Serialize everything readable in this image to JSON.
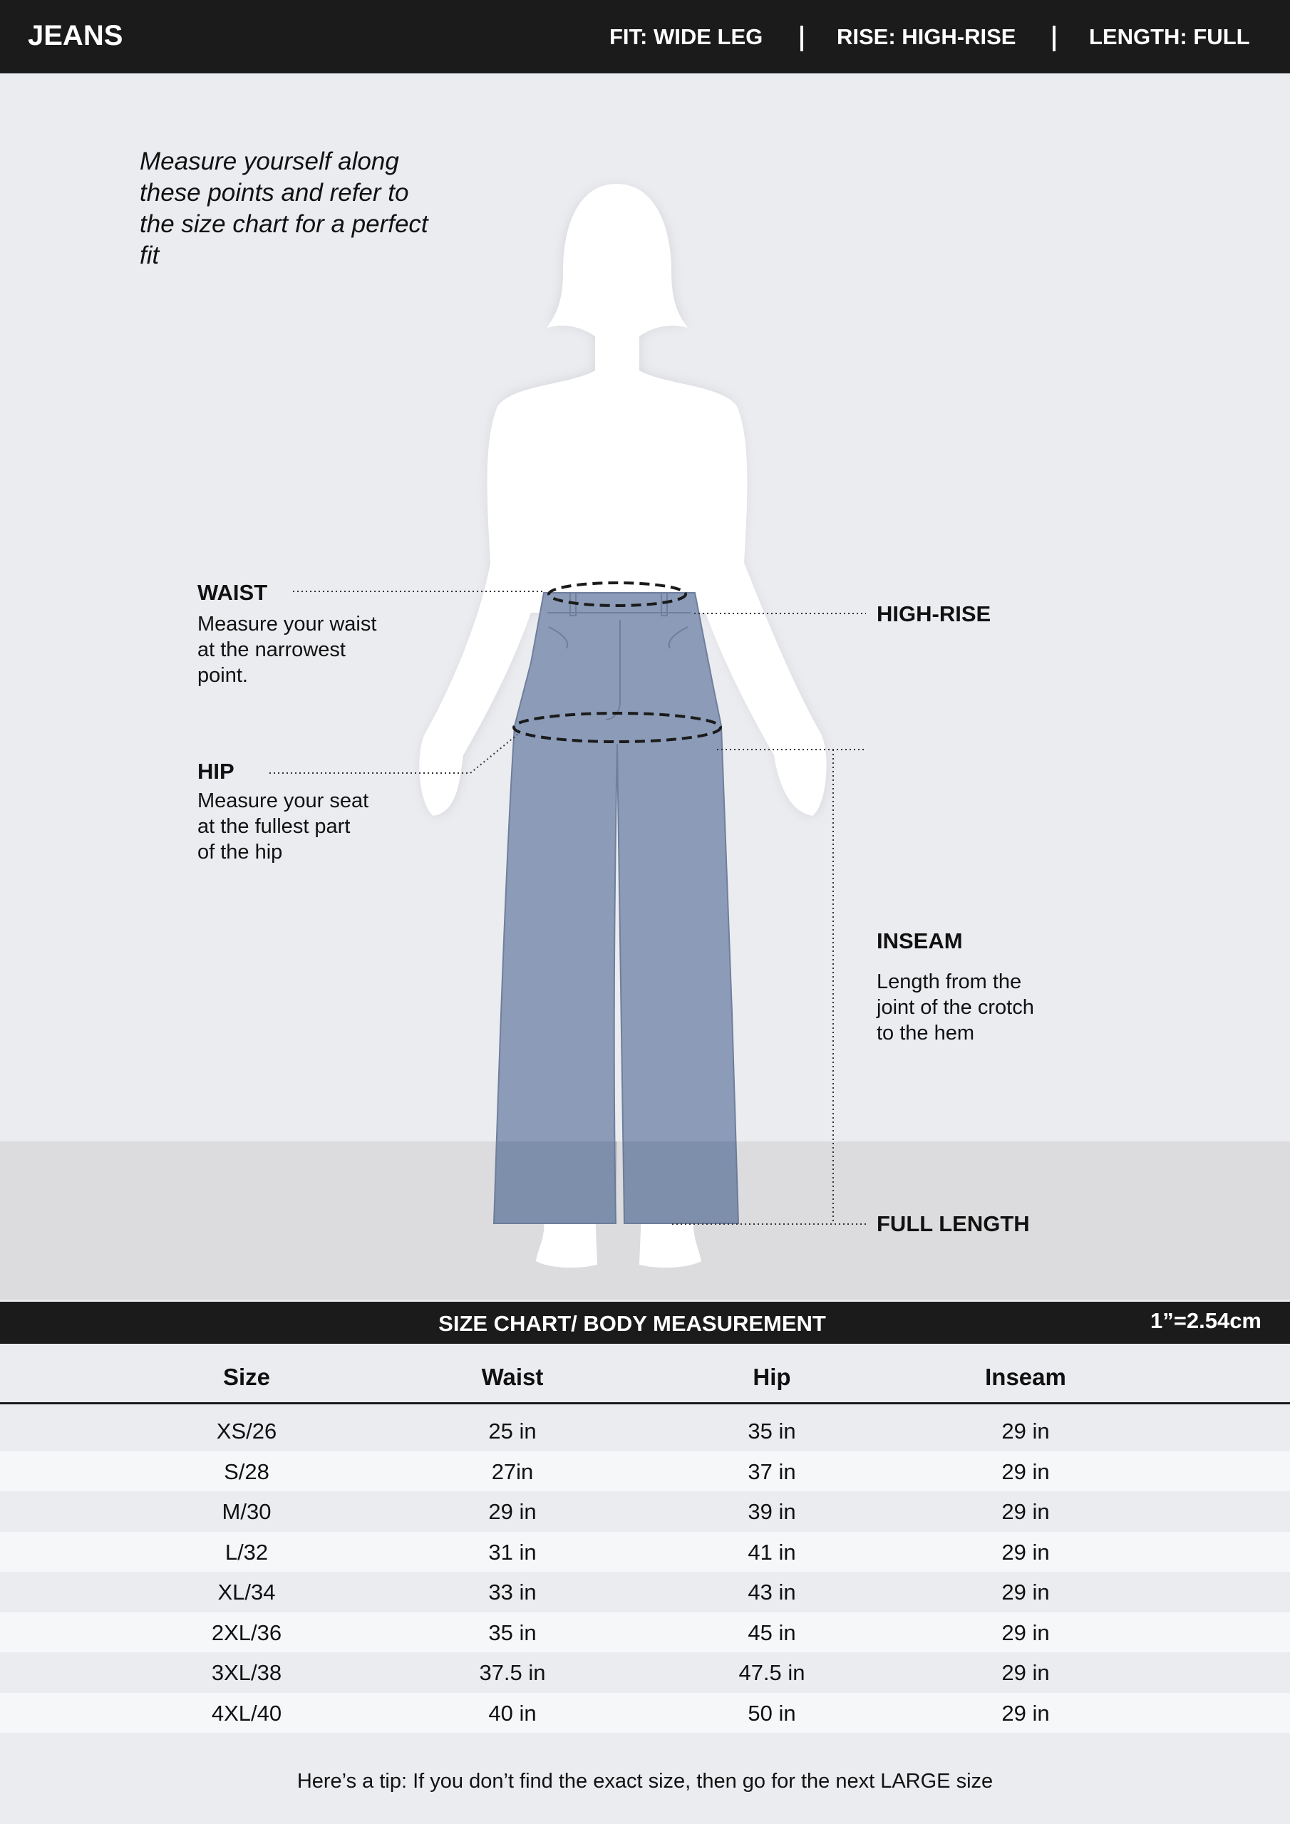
{
  "header": {
    "title": "JEANS",
    "fit": "FIT: WIDE LEG",
    "rise": "RISE: HIGH-RISE",
    "length": "LENGTH: FULL"
  },
  "diagram": {
    "intro": "Measure yourself along these points and refer to the size chart for a perfect fit",
    "waist": {
      "label": "WAIST",
      "desc": [
        "Measure your waist",
        "at the narrowest",
        "point."
      ]
    },
    "hip": {
      "label": "HIP",
      "desc": [
        "Measure your seat",
        "at the fullest part",
        "of the hip"
      ]
    },
    "high_rise": {
      "label": "HIGH-RISE"
    },
    "inseam": {
      "label": "INSEAM",
      "desc": [
        "Length from the",
        "joint of the crotch",
        "to the hem"
      ]
    },
    "full_length": {
      "label": "FULL LENGTH"
    },
    "colors": {
      "pants": "#8b9bb8",
      "background": "#ebecf0",
      "floor": "#dcdcde"
    }
  },
  "table": {
    "title": "SIZE CHART/ BODY MEASUREMENT",
    "conversion": "1”=2.54cm",
    "columns": [
      "Size",
      "Waist",
      "Hip",
      "Inseam"
    ],
    "rows": [
      [
        "XS/26",
        "25 in",
        "35 in",
        "29 in"
      ],
      [
        "S/28",
        "27in",
        "37 in",
        "29 in"
      ],
      [
        "M/30",
        "29 in",
        "39 in",
        "29 in"
      ],
      [
        "L/32",
        "31 in",
        "41 in",
        "29 in"
      ],
      [
        "XL/34",
        "33 in",
        "43 in",
        "29 in"
      ],
      [
        "2XL/36",
        "35 in",
        "45 in",
        "29 in"
      ],
      [
        "3XL/38",
        "37.5 in",
        "47.5 in",
        "29 in"
      ],
      [
        "4XL/40",
        "40 in",
        "50 in",
        "29 in"
      ]
    ]
  },
  "tip": "Here’s a tip: If you don’t find the exact size, then go for the next LARGE size"
}
